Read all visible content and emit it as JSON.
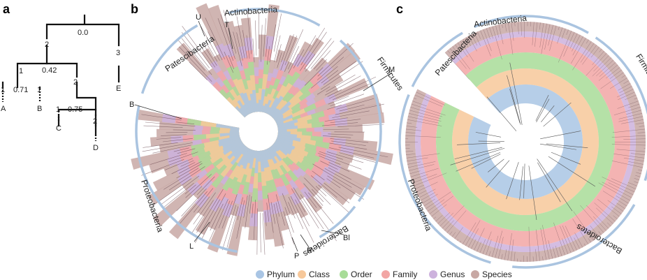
{
  "panels": {
    "a": {
      "label": "a",
      "node_values": [
        "0.0",
        "2",
        "3",
        "1",
        "0.42",
        "2",
        "1",
        "0.71",
        "1",
        "1",
        "0.75",
        "2"
      ],
      "leaves": [
        "A",
        "B",
        "C",
        "D",
        "E"
      ]
    },
    "b": {
      "label": "b",
      "phyla": [
        "Actinobacteria",
        "Firmicutes",
        "Patescibacteria",
        "Proteobacteria",
        "Bacteroidetes"
      ],
      "markers": [
        "U",
        "T",
        "M",
        "B",
        "L",
        "P",
        "R",
        "Bl"
      ]
    },
    "c": {
      "label": "c",
      "phyla": [
        "Actinobacteria",
        "Firmicutes",
        "Patescibacteria",
        "Proteobacteria",
        "Bacteroidetes"
      ]
    }
  },
  "legend": [
    {
      "label": "Phylum",
      "color": "#a9c5e4"
    },
    {
      "label": "Class",
      "color": "#f7c89a"
    },
    {
      "label": "Order",
      "color": "#a8dc98"
    },
    {
      "label": "Family",
      "color": "#f2a6a4"
    },
    {
      "label": "Genus",
      "color": "#cdb2dd"
    },
    {
      "label": "Species",
      "color": "#c8a8a4"
    }
  ],
  "colors": {
    "tree_line": "#111111",
    "arc": "#aac4e0",
    "branches": "#6b4a52"
  }
}
